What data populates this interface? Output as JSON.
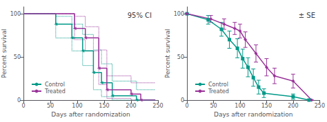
{
  "chart_data": [
    {
      "type": "step",
      "title": "95% CI",
      "xlabel": "Days after randomization",
      "ylabel": "Percent survival",
      "xlim": [
        0,
        250
      ],
      "ylim": [
        0,
        108
      ],
      "xticks": [
        0,
        50,
        100,
        150,
        200,
        250
      ],
      "yticks": [
        0,
        50,
        100
      ],
      "grid": false,
      "legend": "lower left",
      "series": [
        {
          "name": "Control",
          "color": "#009988",
          "marker": "triangle",
          "x": [
            0,
            60,
            60,
            90,
            90,
            110,
            110,
            130,
            130,
            145,
            145,
            165,
            165,
            210,
            210,
            245
          ],
          "values": [
            100,
            100,
            88,
            88,
            72,
            72,
            57,
            57,
            32,
            32,
            20,
            20,
            5,
            5,
            0,
            0
          ],
          "ci_upper_x": [
            0,
            60,
            60,
            90,
            90,
            110,
            110,
            130,
            130,
            145,
            145,
            165,
            165,
            210,
            210,
            245
          ],
          "ci_upper": [
            100,
            100,
            97,
            97,
            88,
            88,
            76,
            76,
            58,
            58,
            42,
            42,
            22,
            22,
            12,
            12
          ],
          "ci_lower_x": [
            0,
            60,
            60,
            90,
            90,
            110,
            110,
            130,
            130,
            145,
            145,
            165,
            165,
            210,
            210,
            245
          ],
          "ci_lower": [
            100,
            100,
            72,
            72,
            57,
            57,
            40,
            40,
            12,
            12,
            4,
            4,
            0,
            0,
            0,
            0
          ],
          "drop_x": [
            60,
            90,
            110,
            130,
            145,
            165,
            210
          ],
          "drop_values": [
            88,
            72,
            57,
            32,
            20,
            5,
            0
          ]
        },
        {
          "name": "Treated",
          "color": "#993399",
          "marker": "triangle",
          "x": [
            0,
            95,
            95,
            115,
            115,
            140,
            140,
            155,
            155,
            200,
            200,
            218,
            218,
            245
          ],
          "values": [
            100,
            100,
            83,
            83,
            72,
            72,
            37,
            37,
            12,
            12,
            7,
            7,
            0,
            0
          ],
          "ci_upper_x": [
            0,
            95,
            95,
            115,
            115,
            140,
            140,
            155,
            155,
            200,
            200,
            245
          ],
          "ci_upper": [
            100,
            100,
            97,
            97,
            85,
            85,
            58,
            58,
            28,
            28,
            20,
            20
          ],
          "ci_lower_x": [
            0,
            95,
            95,
            115,
            115,
            140,
            140,
            155,
            155,
            200,
            200,
            218,
            218,
            245
          ],
          "ci_lower": [
            100,
            100,
            70,
            70,
            57,
            57,
            18,
            18,
            2,
            2,
            0,
            0,
            0,
            0
          ],
          "drop_x": [
            95,
            115,
            140,
            155,
            200,
            218
          ],
          "drop_values": [
            83,
            72,
            37,
            12,
            7,
            0
          ]
        }
      ]
    },
    {
      "type": "line",
      "title": "± SE",
      "xlabel": "Days after randomization",
      "ylabel": "Percent survival",
      "xlim": [
        0,
        250
      ],
      "ylim": [
        0,
        108
      ],
      "xticks": [
        0,
        50,
        100,
        150,
        200,
        250
      ],
      "yticks": [
        0,
        50,
        100
      ],
      "grid": false,
      "legend": "lower left",
      "series": [
        {
          "name": "Control",
          "color": "#009988",
          "marker": "square",
          "x": [
            0,
            40,
            65,
            80,
            95,
            105,
            115,
            125,
            135,
            145,
            200,
            230
          ],
          "values": [
            100,
            93,
            82,
            70,
            60,
            48,
            38,
            26,
            15,
            8,
            4,
            0
          ],
          "errors": [
            0,
            5,
            8,
            10,
            11,
            11,
            11,
            10,
            8,
            5,
            3,
            0
          ]
        },
        {
          "name": "Treated",
          "color": "#993399",
          "marker": "diamond",
          "x": [
            0,
            45,
            70,
            90,
            100,
            110,
            130,
            150,
            165,
            200,
            235
          ],
          "values": [
            100,
            94,
            88,
            83,
            80,
            70,
            54,
            38,
            28,
            22,
            0
          ],
          "errors": [
            0,
            4,
            6,
            7,
            8,
            9,
            10,
            10,
            9,
            8,
            0
          ]
        }
      ]
    }
  ]
}
